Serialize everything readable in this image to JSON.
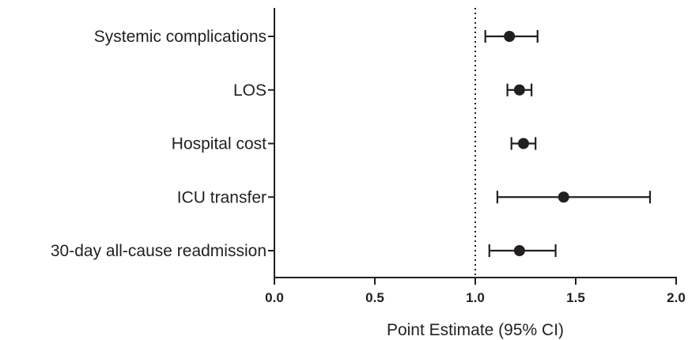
{
  "chart_data": {
    "type": "forest",
    "xlabel": "Point Estimate  (95% CI)",
    "ylabel": "",
    "xlim": [
      0,
      2
    ],
    "x_ticks": [
      0,
      0.5,
      1,
      1.5,
      2
    ],
    "x_tick_labels": [
      "0.0",
      "0.5",
      "1.0",
      "1.5",
      "2.0"
    ],
    "reference_line": 1.0,
    "grid": false,
    "categories": [
      "Systemic complications",
      "LOS",
      "Hospital cost",
      "ICU transfer",
      "30-day all-cause readmission"
    ],
    "estimates": [
      1.17,
      1.22,
      1.24,
      1.44,
      1.22
    ],
    "ci_low": [
      1.05,
      1.16,
      1.18,
      1.11,
      1.07
    ],
    "ci_high": [
      1.31,
      1.28,
      1.3,
      1.87,
      1.4
    ],
    "colors": {
      "ink": "#231f20"
    }
  }
}
